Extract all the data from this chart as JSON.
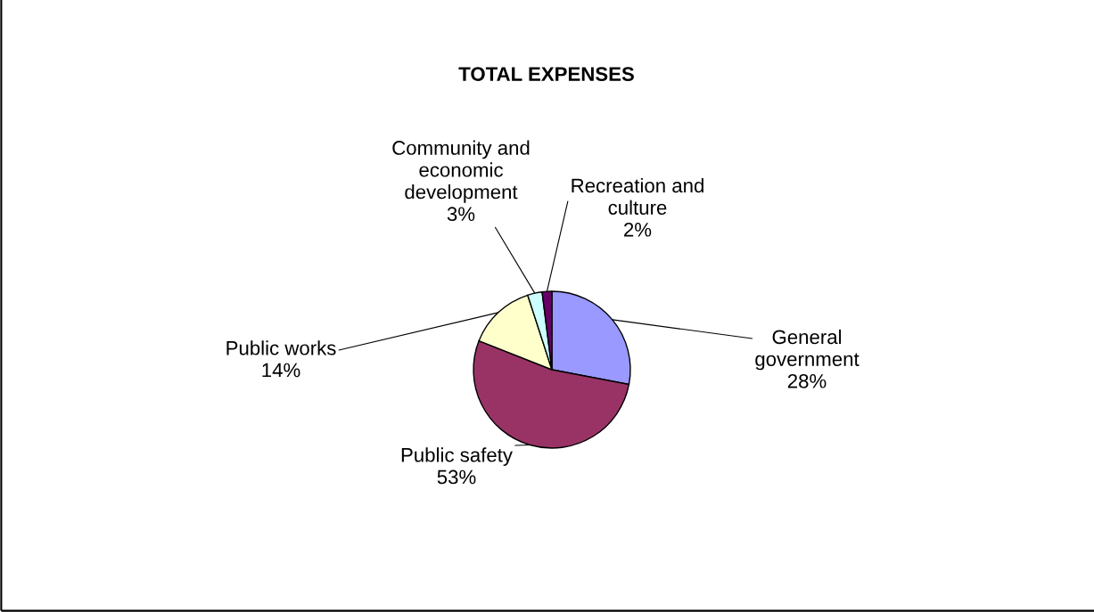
{
  "chart_data": {
    "type": "pie",
    "title": "TOTAL EXPENSES",
    "categories": [
      "General\ngovernment",
      "Public safety",
      "Public works",
      "Community and\neconomic\ndevelopment",
      "Recreation and\nculture"
    ],
    "values": [
      28,
      53,
      14,
      3,
      2
    ],
    "value_labels": [
      "28%",
      "53%",
      "14%",
      "3%",
      "2%"
    ],
    "colors": [
      "#9999ff",
      "#993366",
      "#ffffcc",
      "#ccffff",
      "#660066"
    ],
    "legend": false
  }
}
